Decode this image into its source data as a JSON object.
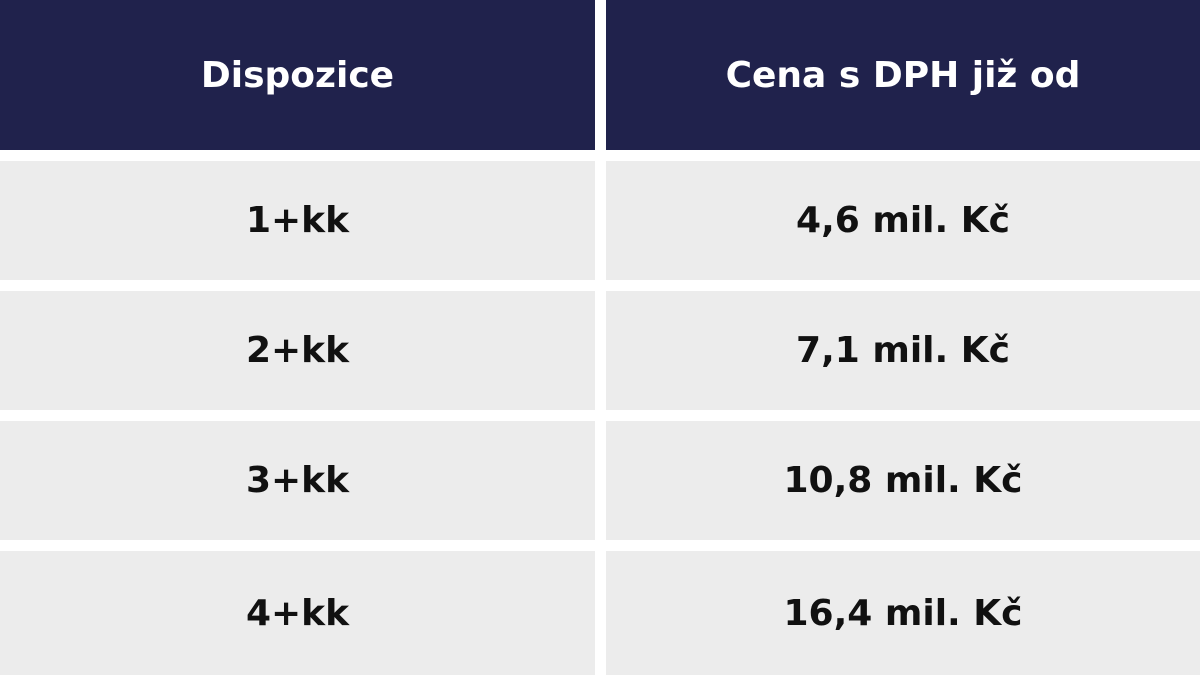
{
  "table": {
    "header": [
      "Dispozice",
      "Cena s DPH již od"
    ],
    "rows": [
      [
        "1+kk",
        "4,6 mil. Kč"
      ],
      [
        "2+kk",
        "7,1 mil. Kč"
      ],
      [
        "3+kk",
        "10,8 mil. Kč"
      ],
      [
        "4+kk",
        "16,4 mil. Kč"
      ]
    ]
  }
}
